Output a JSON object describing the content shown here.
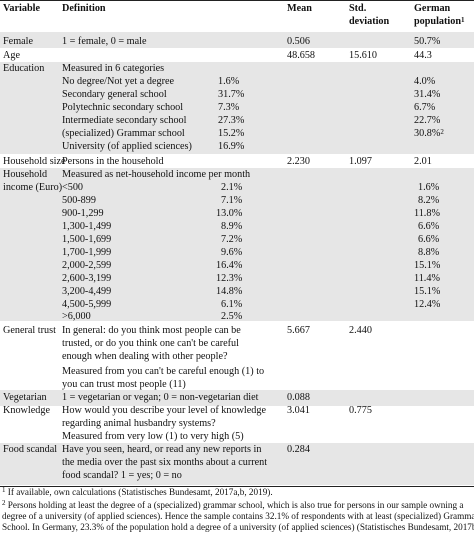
{
  "header": {
    "variable": "Variable",
    "definition": "Definition",
    "mean": "Mean",
    "std_line1": "Std.",
    "std_line2": "deviation",
    "german_line1": "German",
    "german_line2": "population",
    "german_sup": "1"
  },
  "rows": {
    "female": {
      "variable": "Female",
      "definition": "1 = female, 0 = male",
      "mean": "0.506",
      "german": "50.7%"
    },
    "age": {
      "variable": "Age",
      "mean": "48.658",
      "std": "15.610",
      "german": "44.3"
    },
    "education": {
      "variable": "Education",
      "intro": "Measured in 6 categories",
      "items": [
        {
          "label": "No degree/Not yet a degree",
          "pct": "1.6%",
          "german": "4.0%"
        },
        {
          "label": "Secondary general school",
          "pct": "31.7%",
          "german": "31.4%"
        },
        {
          "label": "Polytechnic secondary school",
          "pct": "7.3%",
          "german": "6.7%"
        },
        {
          "label": "Intermediate secondary school",
          "pct": "27.3%",
          "german": "22.7%"
        },
        {
          "label": "(specialized) Grammar school",
          "pct": "15.2%",
          "german": "30.8%",
          "german_sup": "2"
        },
        {
          "label": "University (of applied sciences)",
          "pct": "16.9%",
          "german": ""
        }
      ]
    },
    "household_size": {
      "variable": "Household size",
      "definition": "Persons in the household",
      "mean": "2.230",
      "std": "1.097",
      "german": "2.01"
    },
    "household_income": {
      "variable_line1": "Household",
      "variable_line2": "income (Euro)",
      "intro": "Measured as net-household income per month",
      "items": [
        {
          "label": "<500",
          "pct": "2.1%",
          "german": "1.6%"
        },
        {
          "label": "500-899",
          "pct": "7.1%",
          "german": "8.2%"
        },
        {
          "label": "900-1,299",
          "pct": "13.0%",
          "german": "11.8%"
        },
        {
          "label": "1,300-1,499",
          "pct": "8.9%",
          "german": "6.6%"
        },
        {
          "label": "1,500-1,699",
          "pct": "7.2%",
          "german": "6.6%"
        },
        {
          "label": "1,700-1,999",
          "pct": "9.6%",
          "german": "8.8%"
        },
        {
          "label": "2,000-2,599",
          "pct": "16.4%",
          "german": "15.1%"
        },
        {
          "label": "2,600-3,199",
          "pct": "12.3%",
          "german": "11.4%"
        },
        {
          "label": "3,200-4,499",
          "pct": "14.8%",
          "german": "15.1%"
        },
        {
          "label": "4,500-5,999",
          "pct": "6.1%",
          "german": "12.4%"
        },
        {
          "label": ">6,000",
          "pct": "2.5%",
          "german": ""
        }
      ]
    },
    "general_trust": {
      "variable": "General trust",
      "definition_lines": [
        "In general: do you think most people can be",
        "trusted, or do you think one can't be careful",
        "enough when dealing with other people?",
        "Measured from you can't be careful enough (1) to",
        "you can trust most people (11)"
      ],
      "mean": "5.667",
      "std": "2.440"
    },
    "vegetarian": {
      "variable": "Vegetarian",
      "definition": "1 = vegetarian or vegan; 0 = non-vegetarian diet",
      "mean": "0.088"
    },
    "knowledge": {
      "variable": "Knowledge",
      "definition_lines": [
        "How would you describe your level of knowledge",
        "regarding animal husbandry systems?",
        "Measured from very low (1) to very high (5)"
      ],
      "mean": "3.041",
      "std": "0.775"
    },
    "food_scandal": {
      "variable": "Food scandal",
      "definition_lines": [
        "Have you seen, heard, or read any new reports in",
        "the media over the past six months about a current",
        "food scandal? 1 = yes; 0 = no"
      ],
      "mean": "0.284"
    }
  },
  "footnotes": {
    "fn1_sup": "1",
    "fn1": " If available, own calculations (Statistisches Bundesamt, 2017a,b, 2019).",
    "fn2_sup": "2",
    "fn2_lines": [
      " Persons holding at least the degree of a (specialized) grammar school, which is also true for persons in our sample owning a",
      "degree of a university (of applied sciences). Hence the sample contains 32.1% of respondents with at least (specialized) Grammar",
      "School. In Germany, 23.3% of the population hold a degree of a university (of applied sciences) (Statistisches Bundesamt, 2017b)."
    ]
  }
}
